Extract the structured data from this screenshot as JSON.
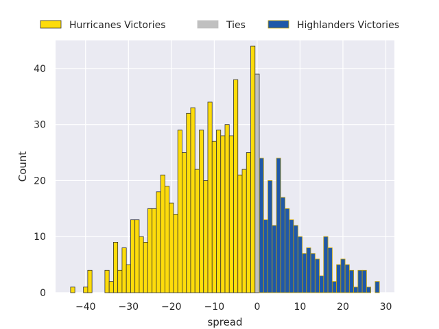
{
  "chart_data": {
    "type": "bar",
    "title": "",
    "xlabel": "spread",
    "ylabel": "Count",
    "xlim": [
      -47,
      32
    ],
    "ylim": [
      0,
      45
    ],
    "xticks": [
      -40,
      -30,
      -20,
      -10,
      0,
      10,
      20,
      30
    ],
    "yticks": [
      0,
      10,
      20,
      30,
      40
    ],
    "grid": true,
    "legend_position": "top",
    "bin_width": 1,
    "series": [
      {
        "name": "Hurricanes Victories",
        "color": "#FDDC0B",
        "edgecolor": "#333333",
        "x": [
          -43,
          -40,
          -39,
          -35,
          -34,
          -33,
          -32,
          -31,
          -30,
          -29,
          -28,
          -27,
          -26,
          -25,
          -24,
          -23,
          -22,
          -21,
          -20,
          -19,
          -18,
          -17,
          -16,
          -15,
          -14,
          -13,
          -12,
          -11,
          -10,
          -9,
          -8,
          -7,
          -6,
          -5,
          -4,
          -3,
          -2,
          -1
        ],
        "values": [
          1,
          1,
          4,
          4,
          2,
          9,
          4,
          8,
          5,
          13,
          13,
          10,
          9,
          15,
          15,
          18,
          21,
          19,
          16,
          14,
          29,
          25,
          32,
          33,
          22,
          29,
          20,
          34,
          27,
          29,
          28,
          30,
          28,
          38,
          21,
          22,
          25,
          44
        ]
      },
      {
        "name": "Ties",
        "color": "#C0C0C0",
        "edgecolor": "#333333",
        "x": [
          0
        ],
        "values": [
          39
        ]
      },
      {
        "name": "Highlanders Victories",
        "color": "#1F58A8",
        "edgecolor": "#C8A200",
        "x": [
          1,
          2,
          3,
          4,
          5,
          6,
          7,
          8,
          9,
          10,
          11,
          12,
          13,
          14,
          15,
          16,
          17,
          18,
          19,
          20,
          21,
          22,
          23,
          24,
          25,
          26,
          28
        ],
        "values": [
          24,
          13,
          20,
          12,
          24,
          17,
          15,
          13,
          12,
          10,
          7,
          8,
          7,
          6,
          3,
          10,
          8,
          2,
          5,
          6,
          5,
          4,
          1,
          4,
          4,
          1,
          2
        ]
      }
    ]
  }
}
